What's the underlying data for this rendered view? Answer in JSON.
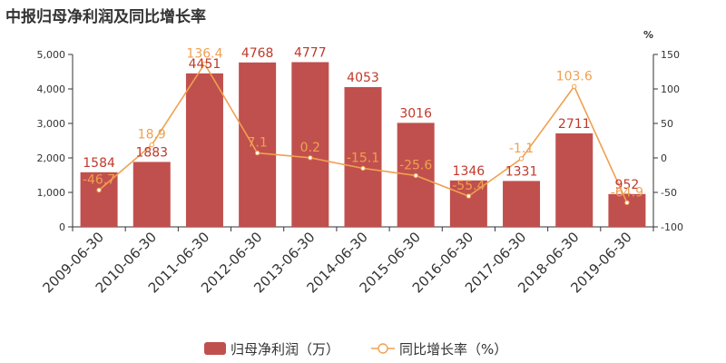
{
  "title": "中报归母净利润及同比增长率",
  "chart_data": {
    "type": "bar",
    "categories": [
      "2009-06-30",
      "2010-06-30",
      "2011-06-30",
      "2012-06-30",
      "2013-06-30",
      "2014-06-30",
      "2015-06-30",
      "2016-06-30",
      "2017-06-30",
      "2018-06-30",
      "2019-06-30"
    ],
    "series": [
      {
        "name": "归母净利润（万）",
        "type": "bar",
        "axis": "left",
        "color": "#c0504d",
        "values": [
          1584,
          1883,
          4451,
          4768,
          4777,
          4053,
          3016,
          1346,
          1331,
          2711,
          952
        ]
      },
      {
        "name": "同比增长率（%）",
        "type": "line",
        "axis": "right",
        "color": "#f0a050",
        "values": [
          -46.7,
          18.9,
          136.4,
          7.1,
          0.2,
          -15.1,
          -25.6,
          -55.4,
          -1.1,
          103.6,
          -64.9
        ]
      }
    ],
    "y_left": {
      "min": 0,
      "max": 5000,
      "ticks": [
        0,
        1000,
        2000,
        3000,
        4000,
        5000
      ],
      "tick_labels": [
        "0",
        "1,000",
        "2,000",
        "3,000",
        "4,000",
        "5,000"
      ]
    },
    "y_right": {
      "min": -100,
      "max": 150,
      "ticks": [
        -100,
        -50,
        0,
        50,
        100,
        150
      ],
      "tick_labels": [
        "-100",
        "-50",
        "0",
        "50",
        "100",
        "150"
      ],
      "unit": "%"
    },
    "legend": {
      "position": "bottom",
      "items": [
        "归母净利润（万）",
        "同比增长率（%）"
      ]
    },
    "grid": false
  }
}
